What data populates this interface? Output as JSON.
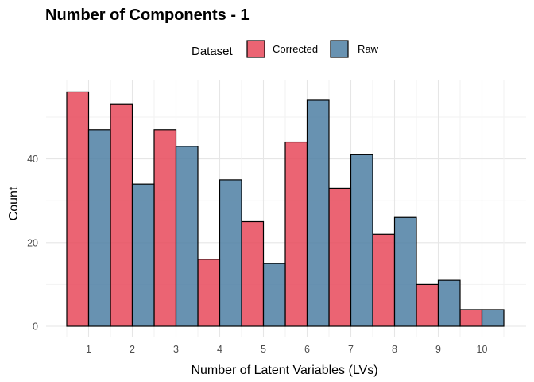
{
  "chart_data": {
    "type": "bar",
    "title": "Number of Components - 1",
    "xlabel": "Number of Latent Variables (LVs)",
    "ylabel": "Count",
    "categories": [
      "1",
      "2",
      "3",
      "4",
      "5",
      "6",
      "7",
      "8",
      "9",
      "10"
    ],
    "series": [
      {
        "name": "Corrected",
        "color": "#e8495a",
        "values": [
          56,
          53,
          47,
          16,
          25,
          44,
          33,
          22,
          10,
          4
        ]
      },
      {
        "name": "Raw",
        "color": "#4d7fa3",
        "values": [
          47,
          34,
          43,
          35,
          15,
          54,
          41,
          26,
          11,
          4
        ]
      }
    ],
    "legend": {
      "title": "Dataset",
      "position": "top"
    },
    "ylim": [
      0,
      56
    ],
    "yticks": [
      0,
      20,
      40
    ],
    "grid": true
  }
}
